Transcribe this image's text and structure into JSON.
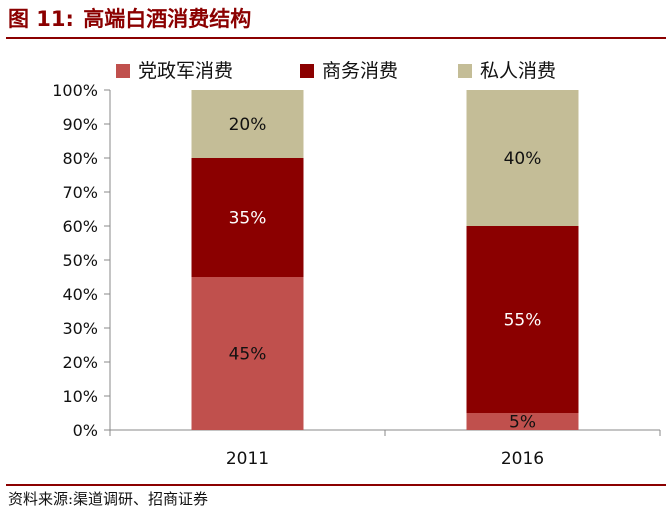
{
  "figure": {
    "title_number": "图 11:",
    "title_text": "高端白酒消费结构",
    "source": "资料来源:渠道调研、招商证券"
  },
  "colors": {
    "accent": "#8B0000",
    "series": [
      "#C0504D",
      "#8B0000",
      "#C4BD97"
    ]
  },
  "chart_data": {
    "type": "bar",
    "stacked": true,
    "categories": [
      "2011",
      "2016"
    ],
    "series": [
      {
        "name": "党政军消费",
        "values": [
          45,
          5
        ],
        "labels": [
          "45%",
          "5%"
        ]
      },
      {
        "name": "商务消费",
        "values": [
          35,
          55
        ],
        "labels": [
          "35%",
          "55%"
        ]
      },
      {
        "name": "私人消费",
        "values": [
          20,
          40
        ],
        "labels": [
          "20%",
          "40%"
        ]
      }
    ],
    "ylim": [
      0,
      100
    ],
    "yticks": [
      "0%",
      "10%",
      "20%",
      "30%",
      "40%",
      "50%",
      "60%",
      "70%",
      "80%",
      "90%",
      "100%"
    ],
    "legend_position": "top",
    "grid": false
  }
}
